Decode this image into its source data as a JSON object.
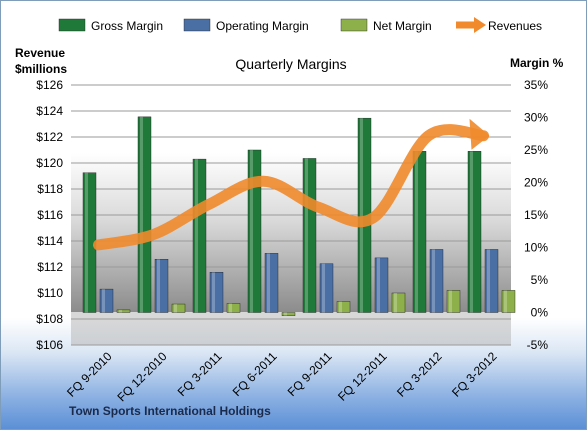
{
  "chart_data": {
    "type": "bar",
    "title": "Quarterly Margins",
    "footer": "Town Sports International Holdings",
    "y_left": {
      "label_line1": "Revenue",
      "label_line2": "$millions",
      "min": 106,
      "max": 126,
      "step": 2,
      "ticks": [
        "$106",
        "$108",
        "$110",
        "$112",
        "$114",
        "$116",
        "$118",
        "$120",
        "$122",
        "$124",
        "$126"
      ]
    },
    "y_right": {
      "label": "Margin %",
      "min": -5,
      "max": 35,
      "step": 5,
      "ticks": [
        "-5%",
        "0%",
        "5%",
        "10%",
        "15%",
        "20%",
        "25%",
        "30%",
        "35%"
      ]
    },
    "categories": [
      "FQ 9-2010",
      "FQ 12-2010",
      "FQ 3-2011",
      "FQ 6-2011",
      "FQ 9-2011",
      "FQ 12-2011",
      "FQ 3-2012",
      "FQ 3-2012"
    ],
    "series": [
      {
        "name": "Gross Margin",
        "color": "#1f7a3a",
        "axis": "right",
        "type": "bar",
        "values": [
          21.5,
          30.1,
          23.6,
          25.0,
          23.7,
          29.9,
          24.8,
          24.8
        ]
      },
      {
        "name": "Operating Margin",
        "color": "#4a6fa5",
        "axis": "right",
        "type": "bar",
        "values": [
          3.6,
          8.2,
          6.2,
          9.1,
          7.5,
          8.4,
          9.7,
          9.7
        ]
      },
      {
        "name": "Net Margin",
        "color": "#8db04a",
        "axis": "right",
        "type": "bar",
        "values": [
          0.4,
          1.3,
          1.4,
          -0.5,
          1.7,
          3.0,
          3.4,
          3.4
        ]
      },
      {
        "name": "Revenues",
        "color": "#f08a2c",
        "axis": "left",
        "type": "line",
        "values": [
          113.7,
          114.5,
          116.8,
          118.6,
          116.6,
          115.8,
          122.1,
          122.1
        ]
      }
    ],
    "legend_position": "top",
    "grid": true
  }
}
